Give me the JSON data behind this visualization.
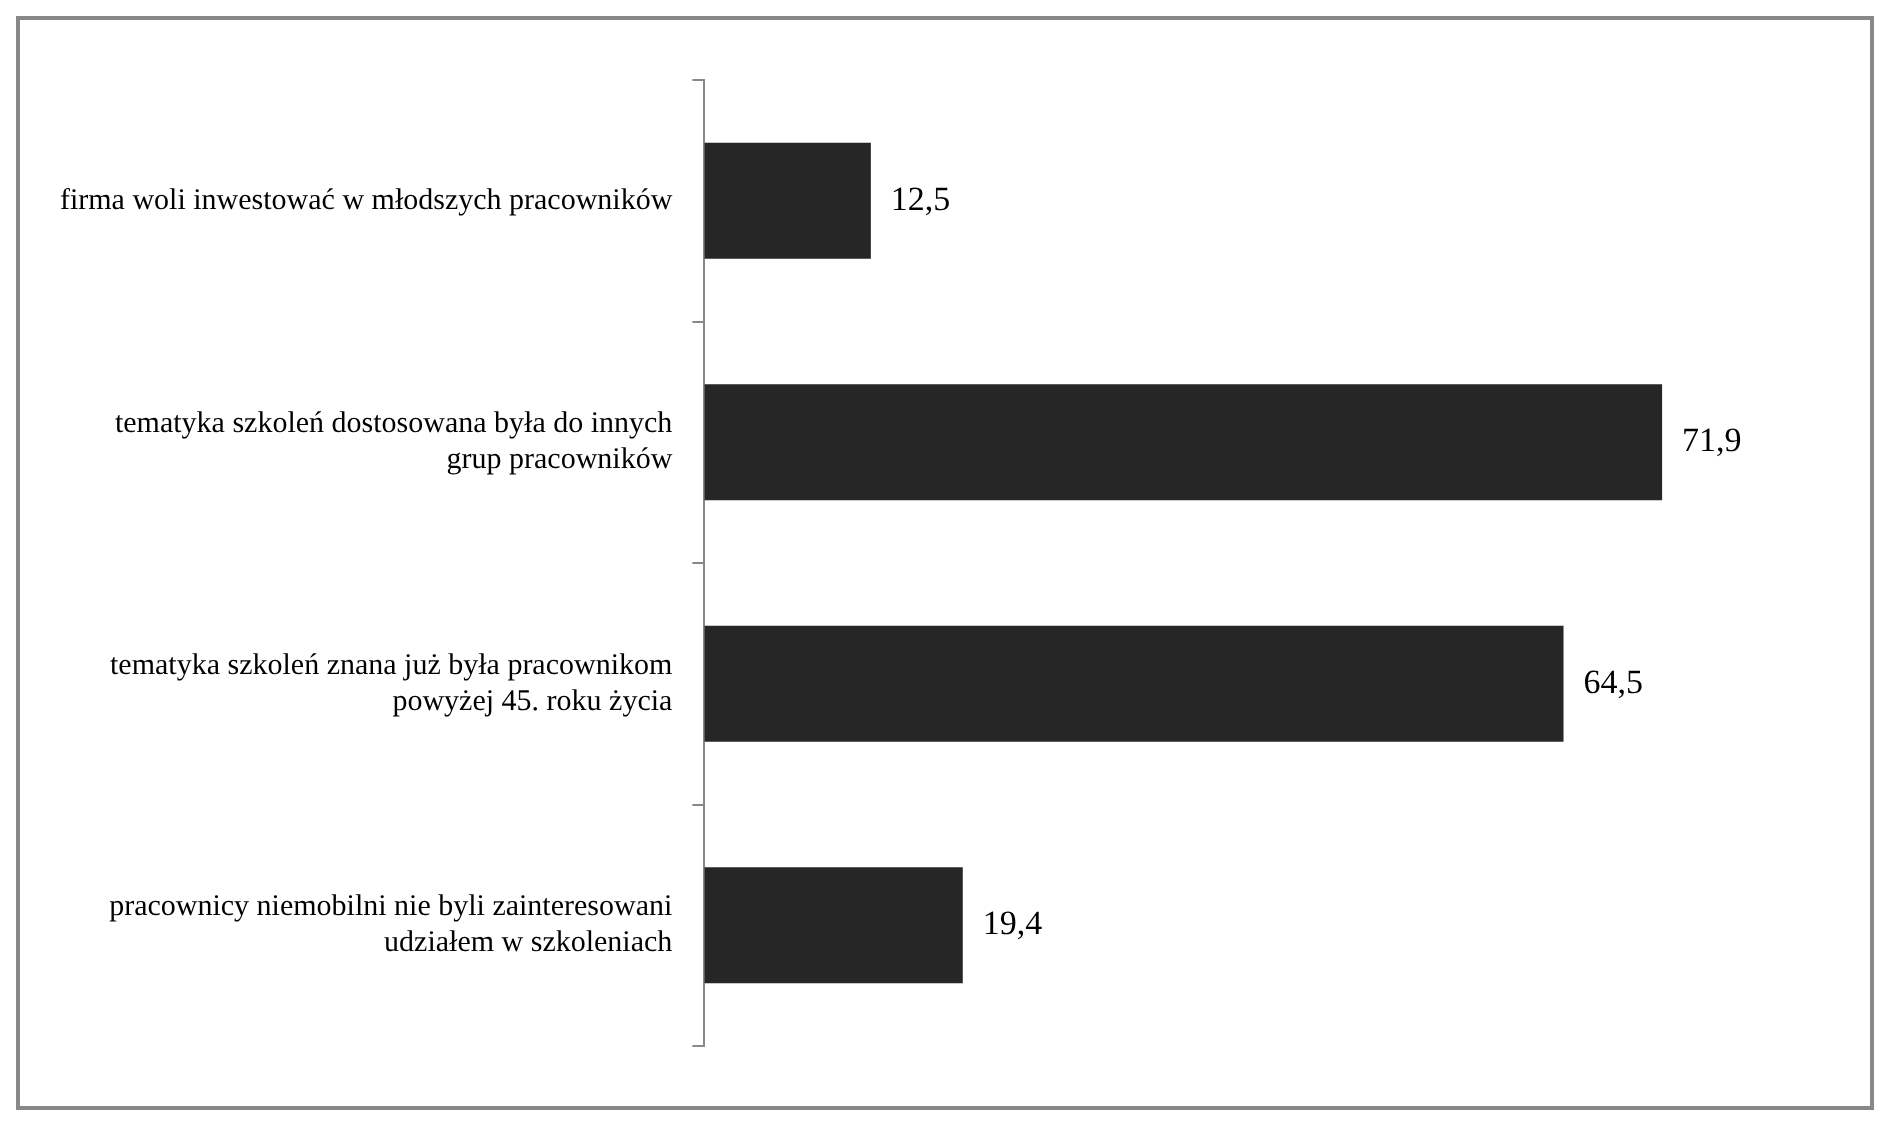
{
  "chart_data": {
    "type": "bar",
    "orientation": "horizontal",
    "categories": [
      "firma woli inwestować w młodszych pracowników",
      "tematyka szkoleń dostosowana była do innych grup pracowników",
      "tematyka szkoleń znana już była pracownikom powyżej 45. roku życia",
      "pracownicy niemobilni nie byli zainteresowani udziałem w szkoleniach"
    ],
    "values": [
      12.5,
      71.9,
      64.5,
      19.4
    ],
    "value_labels": [
      "12,5",
      "71,9",
      "64,5",
      "19,4"
    ],
    "color": "#262626",
    "legend": false
  }
}
